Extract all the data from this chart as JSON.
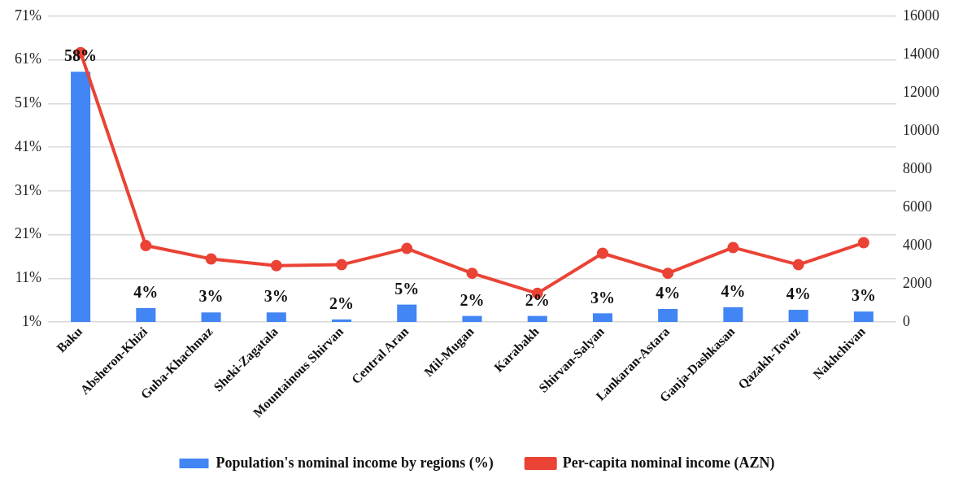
{
  "chart_data": {
    "type": "bar",
    "categories": [
      "Baku",
      "Absheron-Khizi",
      "Guba-Khachmaz",
      "Sheki-Zagatala",
      "Mountainous Shirvan",
      "Central Aran",
      "Mil-Mugan",
      "Karabakh",
      "Shirvan-Salyan",
      "Lankaran-Astara",
      "Ganja-Dashkasan",
      "Qazakh-Tovuz",
      "Nakhchivan"
    ],
    "series": [
      {
        "name": "Population's nominal income by regions (%)",
        "type": "bar",
        "color": "#4285f4",
        "values": [
          58.3,
          4.2,
          3.2,
          3.2,
          1.6,
          5.0,
          2.4,
          2.4,
          3.0,
          4.0,
          4.4,
          3.8,
          3.4
        ],
        "value_labels": [
          "58%",
          "4%",
          "3%",
          "3%",
          "2%",
          "5%",
          "2%",
          "2%",
          "3%",
          "4%",
          "4%",
          "4%",
          "3%"
        ]
      },
      {
        "name": "Per-capita nominal income (AZN)",
        "type": "line",
        "axis": "y2",
        "color": "#ea4335",
        "marker": "circle",
        "values": [
          14100,
          4000,
          3300,
          2950,
          3000,
          3850,
          2550,
          1500,
          3600,
          2550,
          3900,
          3000,
          4150
        ]
      }
    ],
    "ylim": [
      1,
      71
    ],
    "yticks": [
      {
        "value": 1,
        "label": "1%"
      },
      {
        "value": 11,
        "label": "11%"
      },
      {
        "value": 21,
        "label": "21%"
      },
      {
        "value": 31,
        "label": "31%"
      },
      {
        "value": 41,
        "label": "41%"
      },
      {
        "value": 51,
        "label": "51%"
      },
      {
        "value": 61,
        "label": "61%"
      },
      {
        "value": 71,
        "label": "71%"
      }
    ],
    "y2lim": [
      0,
      16000
    ],
    "y2ticks": [
      0,
      2000,
      4000,
      6000,
      8000,
      10000,
      12000,
      14000,
      16000
    ],
    "grid": "y",
    "legend": "bottom"
  }
}
